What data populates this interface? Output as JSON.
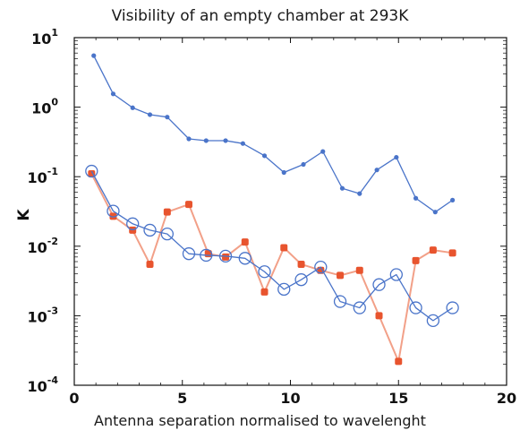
{
  "chart_data": {
    "type": "line",
    "title": "Visibility of an empty chamber at 293K",
    "xlabel": "Antenna separation normalised to wavelenght",
    "ylabel": "K",
    "xlim": [
      0,
      20
    ],
    "ylim": [
      0.0001,
      10
    ],
    "y_scale": "log",
    "grid": false,
    "legend": "none",
    "x_ticks": [
      "0",
      "5",
      "10",
      "15",
      "20"
    ],
    "y_ticks": [
      {
        "base": "10",
        "exp": "1",
        "value": 10
      },
      {
        "base": "10",
        "exp": "0",
        "value": 1
      },
      {
        "base": "10",
        "exp": "-1",
        "value": 0.1
      },
      {
        "base": "10",
        "exp": "-2",
        "value": 0.01
      },
      {
        "base": "10",
        "exp": "-3",
        "value": 0.001
      },
      {
        "base": "10",
        "exp": "-4",
        "value": 0.0001
      }
    ],
    "series": [
      {
        "marker": "dot",
        "color": "#4a74c9",
        "x": [
          0.9,
          1.8,
          2.7,
          3.5,
          4.3,
          5.3,
          6.1,
          7.0,
          7.8,
          8.8,
          9.7,
          10.6,
          11.5,
          12.4,
          13.2,
          14.0,
          14.9,
          15.8,
          16.7,
          17.5
        ],
        "values": [
          5.5,
          1.55,
          0.98,
          0.78,
          0.72,
          0.35,
          0.33,
          0.33,
          0.3,
          0.2,
          0.115,
          0.15,
          0.23,
          0.068,
          0.057,
          0.125,
          0.19,
          0.049,
          0.031,
          0.046
        ]
      },
      {
        "marker": "filled-square",
        "color": "#e8542e",
        "x": [
          0.8,
          1.8,
          2.7,
          3.5,
          4.3,
          5.3,
          6.2,
          7.0,
          7.9,
          8.8,
          9.7,
          10.5,
          11.4,
          12.3,
          13.2,
          14.1,
          15.0,
          15.8,
          16.6,
          17.5
        ],
        "values": [
          0.11,
          0.027,
          0.017,
          0.0055,
          0.031,
          0.04,
          0.0078,
          0.007,
          0.0115,
          0.0022,
          0.0095,
          0.0055,
          0.0045,
          0.0038,
          0.0045,
          0.001,
          0.00022,
          0.0062,
          0.0088,
          0.008
        ]
      },
      {
        "marker": "open-circle",
        "color": "#4a74c9",
        "x": [
          0.8,
          1.8,
          2.7,
          3.5,
          4.3,
          5.3,
          6.1,
          7.0,
          7.9,
          8.8,
          9.7,
          10.5,
          11.4,
          12.3,
          13.2,
          14.1,
          14.9,
          15.8,
          16.6,
          17.5
        ],
        "values": [
          0.12,
          0.032,
          0.021,
          0.017,
          0.015,
          0.0078,
          0.0074,
          0.0072,
          0.0067,
          0.0043,
          0.0024,
          0.0033,
          0.005,
          0.0016,
          0.0013,
          0.0028,
          0.0039,
          0.0013,
          0.00085,
          0.0013
        ]
      }
    ]
  }
}
